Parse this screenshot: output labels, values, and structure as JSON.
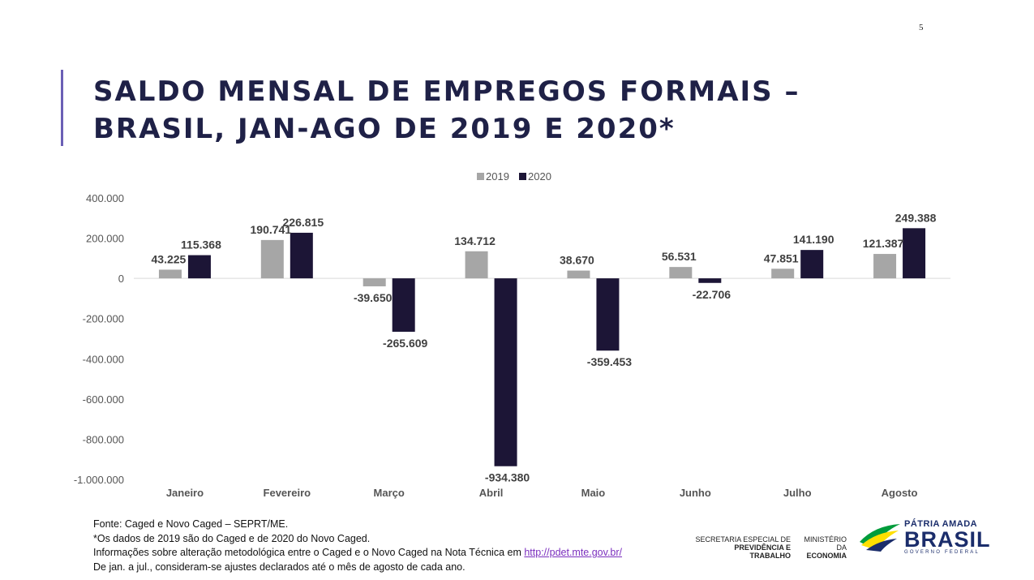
{
  "page_number": "5",
  "title": {
    "line1": "SALDO MENSAL DE EMPREGOS FORMAIS –",
    "line2": "BRASIL, JAN-AGO DE 2019 E 2020*"
  },
  "chart_data": {
    "type": "bar",
    "categories": [
      "Janeiro",
      "Fevereiro",
      "Março",
      "Abril",
      "Maio",
      "Junho",
      "Julho",
      "Agosto"
    ],
    "series": [
      {
        "name": "2019",
        "color": "#a6a6a6",
        "values": [
          43225,
          190741,
          -39650,
          134712,
          38670,
          56531,
          47851,
          121387
        ],
        "labels": [
          "43.225",
          "190.741",
          "-39.650",
          "134.712",
          "38.670",
          "56.531",
          "47.851",
          "121.387"
        ]
      },
      {
        "name": "2020",
        "color": "#1c1536",
        "values": [
          115368,
          226815,
          -265609,
          -934380,
          -359453,
          -22706,
          141190,
          249388
        ],
        "labels": [
          "115.368",
          "226.815",
          "-265.609",
          "-934.380",
          "-359.453",
          "-22.706",
          "141.190",
          "249.388"
        ]
      }
    ],
    "ylim": [
      -1000000,
      400000
    ],
    "yticks": [
      400000,
      200000,
      0,
      -200000,
      -400000,
      -600000,
      -800000,
      -1000000
    ],
    "ytick_labels": [
      "400.000",
      "200.000",
      "0",
      "-200.000",
      "-400.000",
      "-600.000",
      "-800.000",
      "-1.000.000"
    ],
    "legend": "top-center",
    "grid": false
  },
  "notes": {
    "source": "Fonte: Caged e Novo Caged – SEPRT/ME.",
    "note1": "*Os dados de 2019 são do Caged e de 2020 do Novo Caged.",
    "note2_prefix": "Informações sobre alteração metodológica entre o Caged e o Novo Caged na Nota Técnica em ",
    "note2_link": "http://pdet.mte.gov.br/",
    "note3": "De jan. a jul., consideram-se ajustes declarados até o mês de agosto de cada ano."
  },
  "footer": {
    "secretaria_line1": "SECRETARIA ESPECIAL DE",
    "secretaria_line2": "PREVIDÊNCIA E TRABALHO",
    "ministerio_line1": "MINISTÉRIO DA",
    "ministerio_line2": "ECONOMIA",
    "brand_line1": "PÁTRIA AMADA",
    "brand_line2": "BRASIL",
    "brand_line3": "GOVERNO FEDERAL",
    "colors": {
      "green": "#009c3b",
      "yellow": "#ffdf00",
      "blue": "#1b2d6b"
    }
  }
}
